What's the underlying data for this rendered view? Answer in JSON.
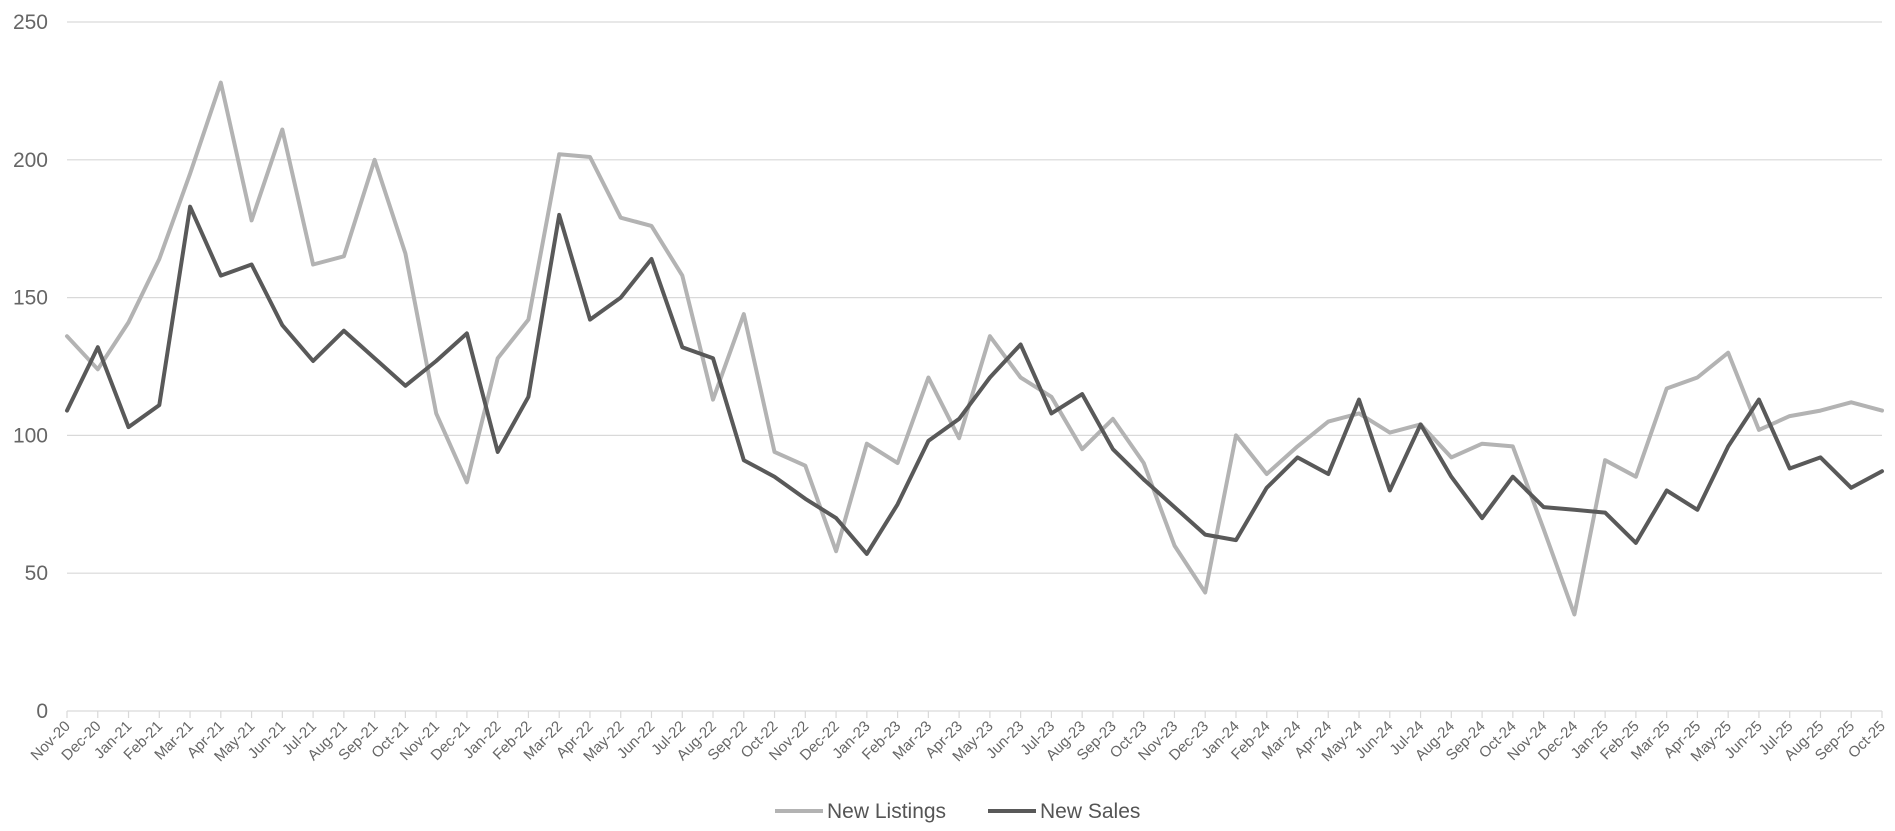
{
  "chart_data": {
    "type": "line",
    "categories": [
      "Nov-20",
      "Dec-20",
      "Jan-21",
      "Feb-21",
      "Mar-21",
      "Apr-21",
      "May-21",
      "Jun-21",
      "Jul-21",
      "Aug-21",
      "Sep-21",
      "Oct-21",
      "Nov-21",
      "Dec-21",
      "Jan-22",
      "Feb-22",
      "Mar-22",
      "Apr-22",
      "May-22",
      "Jun-22",
      "Jul-22",
      "Aug-22",
      "Sep-22",
      "Oct-22",
      "Nov-22",
      "Dec-22",
      "Jan-23",
      "Feb-23",
      "Mar-23",
      "Apr-23",
      "May-23",
      "Jun-23",
      "Jul-23",
      "Aug-23",
      "Sep-23",
      "Oct-23",
      "Nov-23",
      "Dec-23",
      "Jan-24",
      "Feb-24",
      "Mar-24",
      "Apr-24",
      "May-24",
      "Jun-24",
      "Jul-24",
      "Aug-24",
      "Sep-24",
      "Oct-24",
      "Nov-24",
      "Dec-24",
      "Jan-25",
      "Feb-25",
      "Mar-25",
      "Apr-25",
      "May-25",
      "Jun-25",
      "Jul-25",
      "Aug-25",
      "Sep-25",
      "Oct-25"
    ],
    "series": [
      {
        "name": "New Listings",
        "color": "#b3b3b3",
        "values": [
          136,
          124,
          141,
          164,
          195,
          228,
          178,
          211,
          162,
          165,
          200,
          166,
          108,
          83,
          128,
          142,
          202,
          201,
          179,
          176,
          158,
          113,
          144,
          94,
          89,
          58,
          97,
          90,
          121,
          99,
          136,
          121,
          114,
          95,
          106,
          90,
          60,
          43,
          100,
          86,
          96,
          105,
          108,
          101,
          104,
          92,
          97,
          96,
          66,
          35,
          91,
          85,
          117,
          121,
          130,
          102,
          107,
          109,
          112,
          109
        ]
      },
      {
        "name": "New Sales",
        "color": "#595959",
        "values": [
          109,
          132,
          103,
          111,
          183,
          158,
          162,
          140,
          127,
          138,
          128,
          118,
          127,
          137,
          94,
          114,
          180,
          142,
          150,
          164,
          132,
          128,
          91,
          85,
          77,
          70,
          57,
          75,
          98,
          106,
          121,
          133,
          108,
          115,
          95,
          84,
          74,
          64,
          62,
          81,
          92,
          86,
          113,
          80,
          104,
          85,
          70,
          85,
          74,
          73,
          72,
          61,
          80,
          73,
          96,
          113,
          88,
          92,
          81,
          87
        ]
      }
    ],
    "yticks": [
      "0",
      "50",
      "100",
      "150",
      "200",
      "250"
    ],
    "ylim": [
      0,
      250
    ],
    "title": "",
    "xlabel": "",
    "ylabel": "",
    "grid": true,
    "legend_position": "bottom-center",
    "grid_color": "#d9d9d9"
  }
}
